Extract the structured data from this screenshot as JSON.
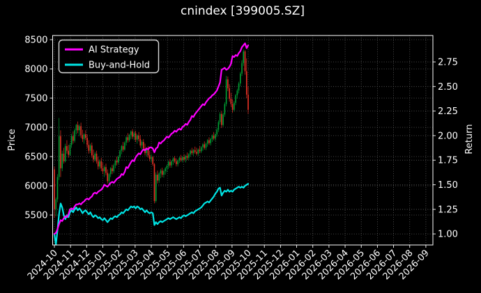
{
  "title": "cnindex [399005.SZ]",
  "axes": {
    "left_label": "Price",
    "right_label": "Return",
    "price_ticks": [
      "8500",
      "8000",
      "7500",
      "7000",
      "6500",
      "6000",
      "5500"
    ],
    "price_tick_values": [
      8500,
      8000,
      7500,
      7000,
      6500,
      6000,
      5500
    ],
    "return_ticks": [
      "2.75",
      "2.50",
      "2.25",
      "2.00",
      "1.75",
      "1.50",
      "1.25",
      "1.00"
    ],
    "return_tick_values": [
      2.75,
      2.5,
      2.25,
      2.0,
      1.75,
      1.5,
      1.25,
      1.0
    ],
    "x_ticks": [
      "2024-10",
      "2024-11",
      "2024-12",
      "2025-01",
      "2025-02",
      "2025-03",
      "2025-04",
      "2025-05",
      "2025-06",
      "2025-07",
      "2025-08",
      "2025-09",
      "2025-10",
      "2025-11",
      "2025-12",
      "2026-01",
      "2026-02",
      "2026-03",
      "2026-04",
      "2026-05",
      "2026-06",
      "2026-07",
      "2026-08",
      "2026-09"
    ]
  },
  "legend": [
    {
      "label": "AI Strategy",
      "color": "#ff00ff"
    },
    {
      "label": "Buy-and-Hold",
      "color": "#00e5e5"
    }
  ],
  "colors": {
    "background": "#000000",
    "text": "#ffffff",
    "spine": "#ffffff",
    "grid": "#686868",
    "candle_up": "#00a335",
    "candle_down": "#ee3226",
    "ai_strategy": "#ff00ff",
    "buy_and_hold": "#00e5e5"
  },
  "chart_data": {
    "type": "candlestick+line",
    "title": "cnindex [399005.SZ]",
    "x_range": [
      "2024-10",
      "2026-09"
    ],
    "data_end": "2025-10",
    "price_axis": {
      "label": "Price",
      "ticks": [
        8500,
        8000,
        7500,
        7000,
        6500,
        6000,
        5500
      ],
      "range": [
        4990,
        8570
      ]
    },
    "return_axis": {
      "label": "Return",
      "ticks": [
        2.75,
        2.5,
        2.25,
        2.0,
        1.75,
        1.5,
        1.25,
        1.0
      ],
      "range": [
        0.89,
        3.02
      ]
    },
    "grid": "dotted, both axes",
    "legend_position": "upper left",
    "candles_ohlc": [
      [
        6280,
        6330,
        5450,
        5600
      ],
      [
        5600,
        5800,
        5480,
        5770
      ],
      [
        5770,
        6200,
        5720,
        6150
      ],
      [
        6150,
        7160,
        6100,
        6850
      ],
      [
        6850,
        6950,
        6150,
        6300
      ],
      [
        6300,
        6600,
        6250,
        6550
      ],
      [
        6550,
        6650,
        6380,
        6420
      ],
      [
        6420,
        6720,
        6400,
        6680
      ],
      [
        6680,
        6780,
        6550,
        6600
      ],
      [
        6600,
        6700,
        6480,
        6530
      ],
      [
        6530,
        6730,
        6510,
        6700
      ],
      [
        6700,
        6890,
        6650,
        6850
      ],
      [
        6850,
        6930,
        6720,
        6770
      ],
      [
        6770,
        6980,
        6740,
        6950
      ],
      [
        6950,
        7060,
        6880,
        7040
      ],
      [
        7040,
        7100,
        6900,
        6950
      ],
      [
        6950,
        7050,
        6850,
        7020
      ],
      [
        7020,
        7080,
        6820,
        6870
      ],
      [
        6870,
        6960,
        6750,
        6800
      ],
      [
        6800,
        6900,
        6720,
        6880
      ],
      [
        6880,
        6950,
        6780,
        6820
      ],
      [
        6820,
        6880,
        6650,
        6700
      ],
      [
        6700,
        6780,
        6550,
        6600
      ],
      [
        6600,
        6720,
        6560,
        6690
      ],
      [
        6690,
        6740,
        6480,
        6520
      ],
      [
        6520,
        6620,
        6400,
        6450
      ],
      [
        6450,
        6580,
        6420,
        6550
      ],
      [
        6550,
        6600,
        6380,
        6420
      ],
      [
        6420,
        6500,
        6280,
        6330
      ],
      [
        6330,
        6450,
        6290,
        6420
      ],
      [
        6420,
        6480,
        6250,
        6300
      ],
      [
        6300,
        6400,
        6200,
        6250
      ],
      [
        6250,
        6350,
        6150,
        6320
      ],
      [
        6320,
        6380,
        6180,
        6220
      ],
      [
        6220,
        6280,
        6040,
        6080
      ],
      [
        6080,
        6220,
        6030,
        6200
      ],
      [
        6200,
        6320,
        6150,
        6300
      ],
      [
        6300,
        6360,
        6200,
        6250
      ],
      [
        6250,
        6380,
        6220,
        6350
      ],
      [
        6350,
        6450,
        6300,
        6430
      ],
      [
        6430,
        6500,
        6350,
        6400
      ],
      [
        6400,
        6520,
        6370,
        6500
      ],
      [
        6500,
        6620,
        6470,
        6600
      ],
      [
        6600,
        6700,
        6540,
        6680
      ],
      [
        6680,
        6750,
        6580,
        6620
      ],
      [
        6620,
        6760,
        6600,
        6740
      ],
      [
        6740,
        6850,
        6690,
        6830
      ],
      [
        6830,
        6900,
        6740,
        6780
      ],
      [
        6780,
        6890,
        6750,
        6870
      ],
      [
        6870,
        6950,
        6800,
        6930
      ],
      [
        6930,
        6970,
        6800,
        6840
      ],
      [
        6840,
        6930,
        6780,
        6900
      ],
      [
        6900,
        6940,
        6750,
        6790
      ],
      [
        6790,
        6880,
        6720,
        6860
      ],
      [
        6860,
        6920,
        6760,
        6800
      ],
      [
        6800,
        6870,
        6650,
        6690
      ],
      [
        6690,
        6780,
        6620,
        6750
      ],
      [
        6750,
        6800,
        6600,
        6640
      ],
      [
        6640,
        6720,
        6520,
        6560
      ],
      [
        6560,
        6660,
        6500,
        6630
      ],
      [
        6630,
        6680,
        6480,
        6520
      ],
      [
        6520,
        6600,
        6420,
        6460
      ],
      [
        6460,
        6540,
        6400,
        6490
      ],
      [
        6490,
        6510,
        6340,
        6370
      ],
      [
        6370,
        6390,
        5700,
        5740
      ],
      [
        5740,
        6230,
        5710,
        6190
      ],
      [
        6190,
        6260,
        6040,
        6090
      ],
      [
        6090,
        6230,
        6050,
        6210
      ],
      [
        6210,
        6290,
        6130,
        6260
      ],
      [
        6260,
        6310,
        6150,
        6190
      ],
      [
        6190,
        6280,
        6140,
        6250
      ],
      [
        6250,
        6320,
        6190,
        6300
      ],
      [
        6300,
        6360,
        6230,
        6340
      ],
      [
        6340,
        6430,
        6290,
        6410
      ],
      [
        6410,
        6460,
        6310,
        6350
      ],
      [
        6350,
        6440,
        6310,
        6420
      ],
      [
        6420,
        6490,
        6360,
        6470
      ],
      [
        6470,
        6510,
        6390,
        6420
      ],
      [
        6420,
        6470,
        6330,
        6370
      ],
      [
        6370,
        6450,
        6330,
        6430
      ],
      [
        6430,
        6500,
        6390,
        6480
      ],
      [
        6480,
        6530,
        6410,
        6440
      ],
      [
        6440,
        6510,
        6400,
        6490
      ],
      [
        6490,
        6540,
        6420,
        6450
      ],
      [
        6450,
        6530,
        6400,
        6510
      ],
      [
        6510,
        6570,
        6440,
        6480
      ],
      [
        6480,
        6560,
        6440,
        6540
      ],
      [
        6540,
        6620,
        6500,
        6600
      ],
      [
        6600,
        6650,
        6530,
        6560
      ],
      [
        6560,
        6630,
        6510,
        6610
      ],
      [
        6610,
        6670,
        6550,
        6580
      ],
      [
        6580,
        6650,
        6520,
        6550
      ],
      [
        6550,
        6640,
        6510,
        6620
      ],
      [
        6620,
        6680,
        6560,
        6590
      ],
      [
        6590,
        6680,
        6560,
        6660
      ],
      [
        6660,
        6730,
        6600,
        6710
      ],
      [
        6710,
        6760,
        6620,
        6650
      ],
      [
        6650,
        6740,
        6610,
        6720
      ],
      [
        6720,
        6800,
        6670,
        6780
      ],
      [
        6780,
        6830,
        6700,
        6730
      ],
      [
        6730,
        6820,
        6690,
        6800
      ],
      [
        6800,
        6880,
        6750,
        6860
      ],
      [
        6860,
        6920,
        6780,
        6810
      ],
      [
        6810,
        6900,
        6770,
        6880
      ],
      [
        6880,
        6990,
        6840,
        6960
      ],
      [
        6960,
        7120,
        6920,
        7090
      ],
      [
        7090,
        7260,
        7050,
        7230
      ],
      [
        7230,
        7280,
        6990,
        7040
      ],
      [
        7040,
        7250,
        7010,
        7220
      ],
      [
        7220,
        7430,
        7180,
        7400
      ],
      [
        7400,
        7880,
        7360,
        7820
      ],
      [
        7820,
        7870,
        7620,
        7670
      ],
      [
        7670,
        7740,
        7440,
        7490
      ],
      [
        7490,
        7590,
        7350,
        7400
      ],
      [
        7400,
        7480,
        7250,
        7300
      ],
      [
        7300,
        7450,
        7270,
        7420
      ],
      [
        7420,
        7570,
        7380,
        7550
      ],
      [
        7550,
        7660,
        7490,
        7630
      ],
      [
        7630,
        7780,
        7580,
        7750
      ],
      [
        7750,
        7950,
        7700,
        7920
      ],
      [
        7920,
        8150,
        7880,
        8100
      ],
      [
        8100,
        8330,
        8050,
        8300
      ],
      [
        8300,
        8320,
        7900,
        7960
      ],
      [
        7960,
        8180,
        7500,
        7560
      ],
      [
        7560,
        7700,
        7230,
        7300
      ]
    ],
    "series": [
      {
        "name": "AI Strategy",
        "axis": "return",
        "color": "#ff00ff",
        "values": [
          1.0,
          1.01,
          1.05,
          1.1,
          1.14,
          1.13,
          1.16,
          1.18,
          1.17,
          1.2,
          1.25,
          1.26,
          1.25,
          1.28,
          1.3,
          1.3,
          1.31,
          1.3,
          1.32,
          1.33,
          1.35,
          1.36,
          1.35,
          1.37,
          1.38,
          1.41,
          1.42,
          1.41,
          1.43,
          1.44,
          1.45,
          1.47,
          1.5,
          1.49,
          1.48,
          1.5,
          1.52,
          1.53,
          1.52,
          1.54,
          1.56,
          1.57,
          1.58,
          1.61,
          1.6,
          1.63,
          1.68,
          1.67,
          1.7,
          1.73,
          1.75,
          1.74,
          1.78,
          1.8,
          1.82,
          1.81,
          1.84,
          1.86,
          1.85,
          1.87,
          1.86,
          1.88,
          1.88,
          1.87,
          1.83,
          1.87,
          1.88,
          1.93,
          1.92,
          1.94,
          1.95,
          1.97,
          1.99,
          1.98,
          2.0,
          2.02,
          2.03,
          2.05,
          2.04,
          2.06,
          2.07,
          2.06,
          2.09,
          2.1,
          2.12,
          2.11,
          2.14,
          2.16,
          2.2,
          2.19,
          2.22,
          2.24,
          2.26,
          2.28,
          2.3,
          2.32,
          2.31,
          2.34,
          2.36,
          2.38,
          2.39,
          2.41,
          2.42,
          2.44,
          2.46,
          2.5,
          2.54,
          2.67,
          2.68,
          2.69,
          2.67,
          2.68,
          2.7,
          2.73,
          2.81,
          2.8,
          2.82,
          2.81,
          2.84,
          2.86,
          2.9,
          2.92,
          2.94,
          2.89,
          2.92
        ]
      },
      {
        "name": "Buy-and-Hold",
        "axis": "return",
        "color": "#00e5e5",
        "values": [
          1.0,
          0.89,
          1.04,
          1.2,
          1.31,
          1.27,
          1.19,
          1.15,
          1.19,
          1.17,
          1.22,
          1.24,
          1.22,
          1.25,
          1.27,
          1.24,
          1.26,
          1.24,
          1.21,
          1.23,
          1.24,
          1.22,
          1.2,
          1.22,
          1.19,
          1.17,
          1.19,
          1.18,
          1.16,
          1.17,
          1.15,
          1.14,
          1.16,
          1.14,
          1.12,
          1.14,
          1.16,
          1.15,
          1.17,
          1.18,
          1.17,
          1.19,
          1.2,
          1.22,
          1.21,
          1.23,
          1.25,
          1.24,
          1.26,
          1.28,
          1.27,
          1.28,
          1.26,
          1.28,
          1.27,
          1.25,
          1.26,
          1.24,
          1.22,
          1.24,
          1.22,
          1.21,
          1.22,
          1.21,
          1.09,
          1.12,
          1.1,
          1.12,
          1.13,
          1.12,
          1.13,
          1.14,
          1.15,
          1.16,
          1.15,
          1.16,
          1.17,
          1.16,
          1.15,
          1.16,
          1.17,
          1.16,
          1.18,
          1.19,
          1.18,
          1.19,
          1.2,
          1.21,
          1.22,
          1.21,
          1.23,
          1.24,
          1.25,
          1.26,
          1.27,
          1.29,
          1.31,
          1.32,
          1.33,
          1.32,
          1.34,
          1.36,
          1.38,
          1.41,
          1.43,
          1.46,
          1.47,
          1.39,
          1.42,
          1.44,
          1.43,
          1.45,
          1.43,
          1.44,
          1.43,
          1.45,
          1.46,
          1.47,
          1.48,
          1.47,
          1.48,
          1.47,
          1.49,
          1.5,
          1.51
        ]
      }
    ]
  }
}
